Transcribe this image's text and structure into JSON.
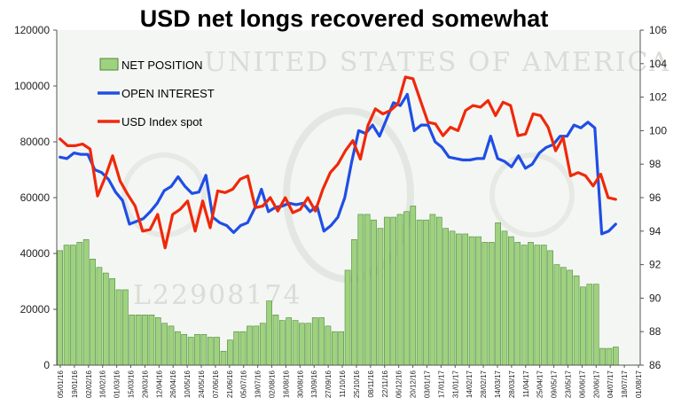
{
  "chart_data": {
    "type": "bar",
    "title": "USD net longs recovered somewhat",
    "xlabel": "",
    "ylabel": "",
    "ylim_left": [
      0,
      120000
    ],
    "ylim_right": [
      86,
      106
    ],
    "left_ticks": [
      "0",
      "20000",
      "40000",
      "60000",
      "80000",
      "100000",
      "120000"
    ],
    "right_ticks": [
      "86",
      "88",
      "90",
      "92",
      "94",
      "96",
      "98",
      "100",
      "102",
      "104",
      "106"
    ],
    "grid": false,
    "legend_position": "top-left",
    "x_tick_labels": [
      "05/01/16",
      "19/01/16",
      "02/02/16",
      "16/02/16",
      "01/03/16",
      "15/03/16",
      "29/03/16",
      "12/04/16",
      "26/04/16",
      "10/05/16",
      "24/05/16",
      "07/06/16",
      "21/06/16",
      "05/07/16",
      "19/07/16",
      "02/08/16",
      "16/08/16",
      "30/08/16",
      "13/09/16",
      "27/09/16",
      "11/10/16",
      "25/10/16",
      "08/11/16",
      "22/11/16",
      "06/12/16",
      "20/12/16",
      "03/01/17",
      "17/01/17",
      "31/01/17",
      "14/02/17",
      "28/02/17",
      "14/03/17",
      "28/03/17",
      "11/04/17",
      "25/04/17",
      "09/05/17",
      "23/05/17",
      "06/06/17",
      "20/06/17",
      "04/07/17",
      "18/07/17",
      "01/08/17"
    ],
    "series": [
      {
        "name": "NET POSITION",
        "axis": "left",
        "kind": "bar",
        "color": "#9fd27f",
        "values": [
          41000,
          43000,
          43000,
          44000,
          45000,
          38000,
          35000,
          33000,
          31000,
          27000,
          27000,
          18000,
          18000,
          18000,
          18000,
          17000,
          15000,
          14000,
          12000,
          11000,
          10000,
          11000,
          11000,
          10000,
          10000,
          5000,
          9000,
          12000,
          12000,
          14000,
          14000,
          15000,
          23000,
          18000,
          16000,
          17000,
          16000,
          15000,
          15000,
          17000,
          17000,
          14000,
          12000,
          12000,
          34000,
          45000,
          54000,
          54000,
          52000,
          49000,
          53000,
          53000,
          54000,
          55000,
          57000,
          52000,
          52000,
          54000,
          53000,
          49000,
          48000,
          47000,
          47000,
          46000,
          46000,
          44000,
          44000,
          51000,
          48000,
          46000,
          44000,
          43000,
          44000,
          43000,
          43000,
          41000,
          36000,
          35000,
          34000,
          32000,
          28000,
          29000,
          29000,
          6000,
          6000,
          6500
        ]
      },
      {
        "name": "OPEN INTEREST",
        "axis": "left",
        "kind": "line",
        "color": "#1f4ee6",
        "values": [
          74500,
          74000,
          76000,
          75500,
          75500,
          70000,
          69000,
          66500,
          62000,
          59000,
          50500,
          51500,
          52500,
          55000,
          58000,
          62500,
          64000,
          67500,
          64000,
          61500,
          62000,
          68000,
          53000,
          51000,
          50000,
          47500,
          50000,
          51000,
          56000,
          63000,
          55000,
          56500,
          57000,
          58000,
          57500,
          58000,
          55000,
          57000,
          48000,
          50000,
          53000,
          60000,
          73000,
          84000,
          83000,
          86000,
          82000,
          88000,
          94000,
          93000,
          97000,
          84000,
          86000,
          86000,
          80000,
          78000,
          74500,
          74000,
          73500,
          73500,
          74000,
          74000,
          82000,
          74000,
          73000,
          71000,
          75000,
          70500,
          72000,
          76000,
          78000,
          79000,
          82000,
          82000,
          86000,
          85000,
          87000,
          85000,
          47000,
          48000,
          50500
        ]
      },
      {
        "name": "USD Index spot",
        "axis": "right",
        "kind": "line",
        "color": "#f0280a",
        "values": [
          99.5,
          99.1,
          99.1,
          99.2,
          98.9,
          96.1,
          97.2,
          98.5,
          97.0,
          96.2,
          95.5,
          94.0,
          94.1,
          95.0,
          93.0,
          95.0,
          95.3,
          95.8,
          94.0,
          95.8,
          94.2,
          96.4,
          96.3,
          96.5,
          97.1,
          97.3,
          95.4,
          95.5,
          96.0,
          95.2,
          96.0,
          95.1,
          95.3,
          96.0,
          95.2,
          96.5,
          97.5,
          98.0,
          98.8,
          99.4,
          98.3,
          100.3,
          101.3,
          101.0,
          101.2,
          101.6,
          103.2,
          103.1,
          101.8,
          100.5,
          100.4,
          99.7,
          100.2,
          100.0,
          101.2,
          101.5,
          101.4,
          101.8,
          100.9,
          101.7,
          101.5,
          99.7,
          99.8,
          101.0,
          100.9,
          100.2,
          98.8,
          99.6,
          97.3,
          97.5,
          97.3,
          96.7,
          97.4,
          96.0,
          95.9
        ]
      }
    ]
  },
  "background": {
    "banknote_text": "UNITED STATES OF AMERICA",
    "serial": "L22908174"
  }
}
